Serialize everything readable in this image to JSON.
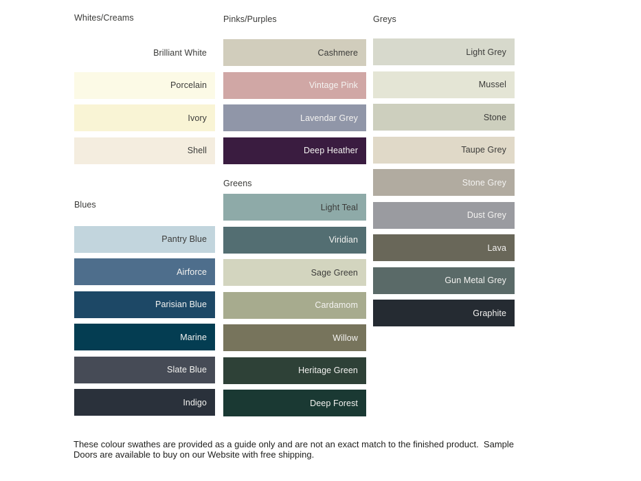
{
  "palette": {
    "label_dark": "#3b3b39",
    "label_light": "#f4f3f1",
    "heading_color": "#393937",
    "background": "#ffffff"
  },
  "columns": [
    {
      "sections": [
        {
          "title": "Whites/Creams",
          "swatches": [
            {
              "name": "Brilliant White",
              "color": "#ffffff",
              "label": "dark"
            },
            {
              "name": "Porcelain",
              "color": "#fcfae6",
              "label": "dark"
            },
            {
              "name": "Ivory",
              "color": "#f9f4d5",
              "label": "dark"
            },
            {
              "name": "Shell",
              "color": "#f4eddf",
              "label": "dark"
            }
          ]
        },
        {
          "title": "Blues",
          "swatches": [
            {
              "name": "Pantry Blue",
              "color": "#c2d5dd",
              "label": "dark"
            },
            {
              "name": "Airforce",
              "color": "#4e6e8c",
              "label": "light"
            },
            {
              "name": "Parisian Blue",
              "color": "#1d4866",
              "label": "light"
            },
            {
              "name": "Marine",
              "color": "#043d52",
              "label": "light"
            },
            {
              "name": "Slate Blue",
              "color": "#464b56",
              "label": "light"
            },
            {
              "name": "Indigo",
              "color": "#2a313b",
              "label": "light"
            }
          ]
        }
      ]
    },
    {
      "sections": [
        {
          "title": "Pinks/Purples",
          "swatches": [
            {
              "name": "Cashmere",
              "color": "#d1cdbc",
              "label": "dark"
            },
            {
              "name": "Vintage Pink",
              "color": "#d0a7a5",
              "label": "light"
            },
            {
              "name": "Lavendar Grey",
              "color": "#9096a8",
              "label": "light"
            },
            {
              "name": "Deep Heather",
              "color": "#3a1c40",
              "label": "light"
            }
          ]
        },
        {
          "title": "Greens",
          "swatches": [
            {
              "name": "Light Teal",
              "color": "#8eaaa8",
              "label": "dark"
            },
            {
              "name": "Viridian",
              "color": "#536e72",
              "label": "light"
            },
            {
              "name": "Sage Green",
              "color": "#d3d5bf",
              "label": "dark"
            },
            {
              "name": "Cardamom",
              "color": "#a7ab8e",
              "label": "light"
            },
            {
              "name": "Willow",
              "color": "#77745c",
              "label": "light"
            },
            {
              "name": "Heritage Green",
              "color": "#2e4137",
              "label": "light"
            },
            {
              "name": "Deep Forest",
              "color": "#1a3933",
              "label": "light"
            }
          ]
        }
      ]
    },
    {
      "sections": [
        {
          "title": "Greys",
          "swatches": [
            {
              "name": "Light Grey",
              "color": "#d7d9cc",
              "label": "dark"
            },
            {
              "name": "Mussel",
              "color": "#e4e5d5",
              "label": "dark"
            },
            {
              "name": "Stone",
              "color": "#cdcfbe",
              "label": "dark"
            },
            {
              "name": "Taupe Grey",
              "color": "#e0d9c8",
              "label": "dark"
            },
            {
              "name": "Stone Grey",
              "color": "#b1aba0",
              "label": "light"
            },
            {
              "name": "Dust Grey",
              "color": "#9a9ba0",
              "label": "light"
            },
            {
              "name": "Lava",
              "color": "#696759",
              "label": "light"
            },
            {
              "name": "Gun Metal Grey",
              "color": "#5a6a68",
              "label": "light"
            },
            {
              "name": "Graphite",
              "color": "#252b32",
              "label": "light"
            }
          ]
        }
      ]
    }
  ],
  "footer": {
    "text": "These colour swathes are provided as a guide only and are not an exact match to the finished product.  Sample Doors are available to buy on our Website with free shipping."
  }
}
